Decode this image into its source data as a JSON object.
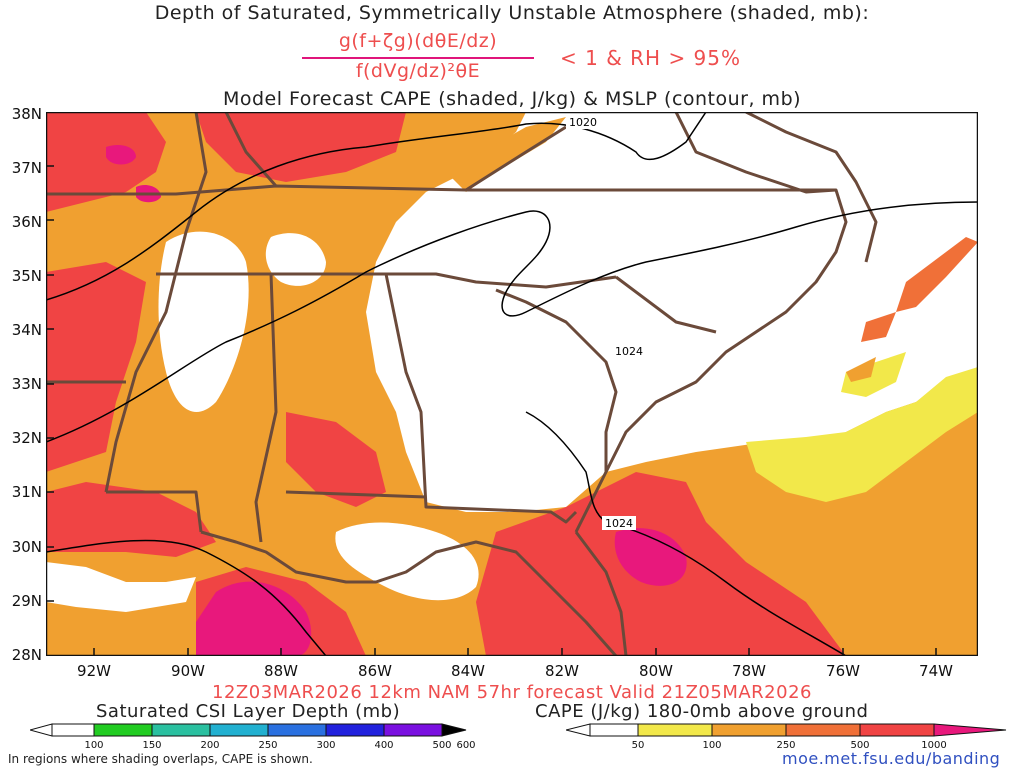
{
  "header": {
    "title_line1": "Depth of Saturated, Symmetrically Unstable Atmosphere (shaded, mb):",
    "fraction_numerator": "g(f+ζg)(dθE/dz)",
    "fraction_denominator": "f(dVg/dz)²θE",
    "condition": "< 1 & RH > 95%",
    "title_line3": "Model Forecast CAPE (shaded, J/kg) & MSLP (contour, mb)"
  },
  "map": {
    "latitude_labels": [
      "38N",
      "37N",
      "36N",
      "35N",
      "34N",
      "33N",
      "32N",
      "31N",
      "30N",
      "29N",
      "28N"
    ],
    "longitude_labels": [
      "92W",
      "90W",
      "88W",
      "86W",
      "84W",
      "82W",
      "80W",
      "78W",
      "76W",
      "74W"
    ],
    "isobar_labels": [
      "1020",
      "1024",
      "1024"
    ],
    "colors": {
      "border": "#6b4a3a",
      "cape_50": "#f2e84a",
      "cape_100": "#f2c236",
      "cape_250": "#f0a030",
      "cape_500": "#f07038",
      "cape_750": "#f04444",
      "cape_1000": "#e8187c"
    }
  },
  "footer": {
    "valid_line": "12Z03MAR2026 12km NAM 57hr forecast Valid 21Z05MAR2026",
    "csi_label": "Saturated CSI Layer Depth (mb)",
    "csi_ticks": [
      "100",
      "150",
      "200",
      "250",
      "300",
      "400",
      "500",
      "600"
    ],
    "cape_label": "CAPE (J/kg) 180-0mb above ground",
    "cape_ticks": [
      "50",
      "100",
      "250",
      "500",
      "1000"
    ],
    "note": "In regions where shading overlaps, CAPE is shown.",
    "url": "moe.met.fsu.edu/banding"
  }
}
